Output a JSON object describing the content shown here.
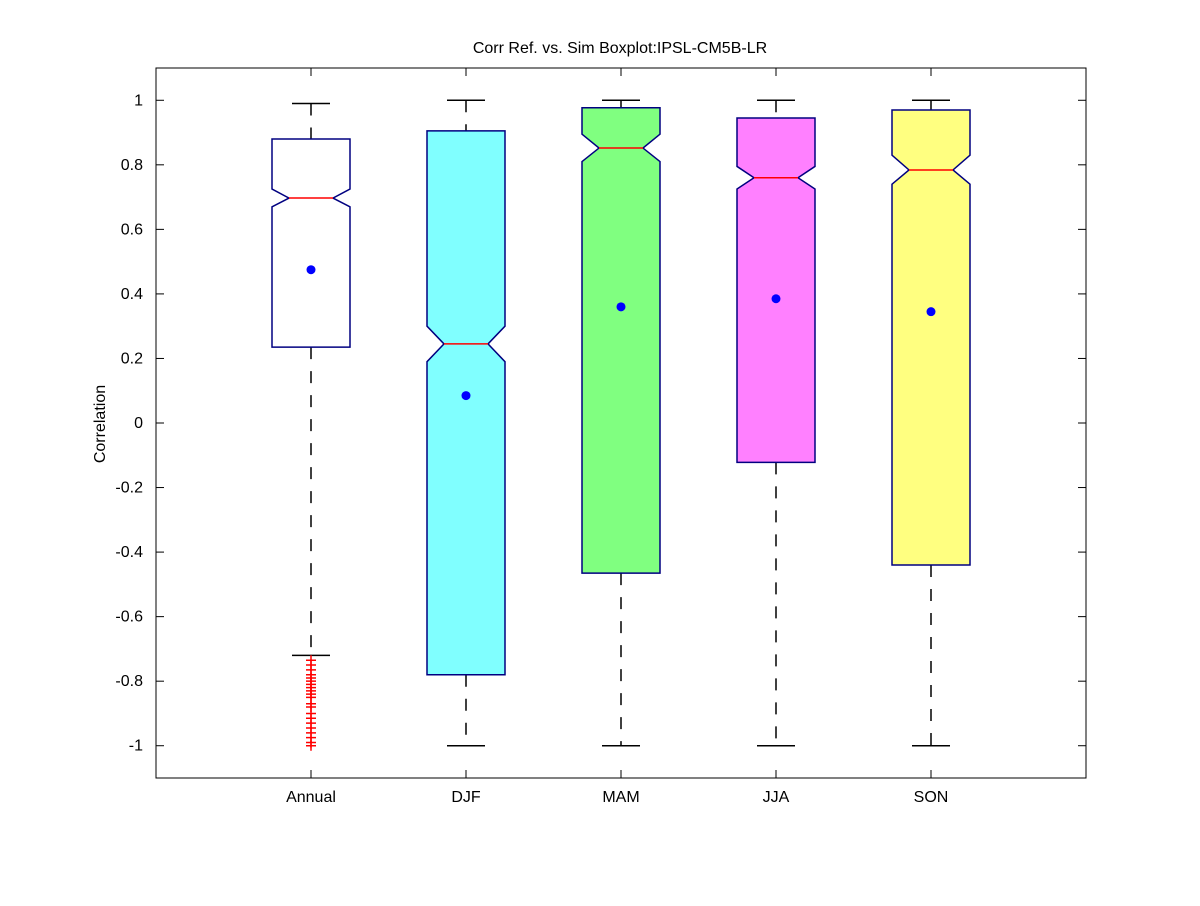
{
  "chart_data": {
    "type": "boxplot",
    "title": "Corr Ref. vs. Sim Boxplot:IPSL-CM5B-LR",
    "xlabel": "",
    "ylabel": "Correlation",
    "ylim": [
      -1.1,
      1.1
    ],
    "yticks": [
      -1,
      -0.8,
      -0.6,
      -0.4,
      -0.2,
      0,
      0.2,
      0.4,
      0.6,
      0.8,
      1
    ],
    "ytick_labels": [
      "-1",
      "-0.8",
      "-0.6",
      "-0.4",
      "-0.2",
      "0",
      "0.2",
      "0.4",
      "0.6",
      "0.8",
      "1"
    ],
    "categories": [
      "Annual",
      "DJF",
      "MAM",
      "JJA",
      "SON"
    ],
    "notched": true,
    "grid": false,
    "boxes": [
      {
        "category": "Annual",
        "whisker_low": -0.72,
        "q1": 0.235,
        "median": 0.697,
        "q3": 0.88,
        "whisker_high": 0.99,
        "notch_low": 0.67,
        "notch_high": 0.725,
        "mean": 0.475,
        "fill": "#ffffff",
        "outliers": [
          -0.735,
          -0.75,
          -0.765,
          -0.78,
          -0.79,
          -0.8,
          -0.81,
          -0.82,
          -0.83,
          -0.84,
          -0.85,
          -0.87,
          -0.88,
          -0.9,
          -0.915,
          -0.93,
          -0.945,
          -0.96,
          -0.975,
          -0.99,
          -1.0
        ]
      },
      {
        "category": "DJF",
        "whisker_low": -1.0,
        "q1": -0.78,
        "median": 0.245,
        "q3": 0.905,
        "whisker_high": 1.0,
        "notch_low": 0.19,
        "notch_high": 0.3,
        "mean": 0.085,
        "fill": "#80ffff",
        "outliers": []
      },
      {
        "category": "MAM",
        "whisker_low": -1.0,
        "q1": -0.465,
        "median": 0.852,
        "q3": 0.977,
        "whisker_high": 1.0,
        "notch_low": 0.81,
        "notch_high": 0.895,
        "mean": 0.36,
        "fill": "#80ff80",
        "outliers": []
      },
      {
        "category": "JJA",
        "whisker_low": -1.0,
        "q1": -0.122,
        "median": 0.76,
        "q3": 0.945,
        "whisker_high": 1.0,
        "notch_low": 0.725,
        "notch_high": 0.795,
        "mean": 0.385,
        "fill": "#ff80ff",
        "outliers": []
      },
      {
        "category": "SON",
        "whisker_low": -1.0,
        "q1": -0.44,
        "median": 0.784,
        "q3": 0.97,
        "whisker_high": 1.0,
        "notch_low": 0.74,
        "notch_high": 0.83,
        "mean": 0.345,
        "fill": "#ffff80",
        "outliers": []
      }
    ],
    "colors": {
      "box_edge": "#000080",
      "median": "#ff0000",
      "mean_marker": "#0000ff",
      "outlier": "#ff0000",
      "whisker": "#000000"
    }
  }
}
